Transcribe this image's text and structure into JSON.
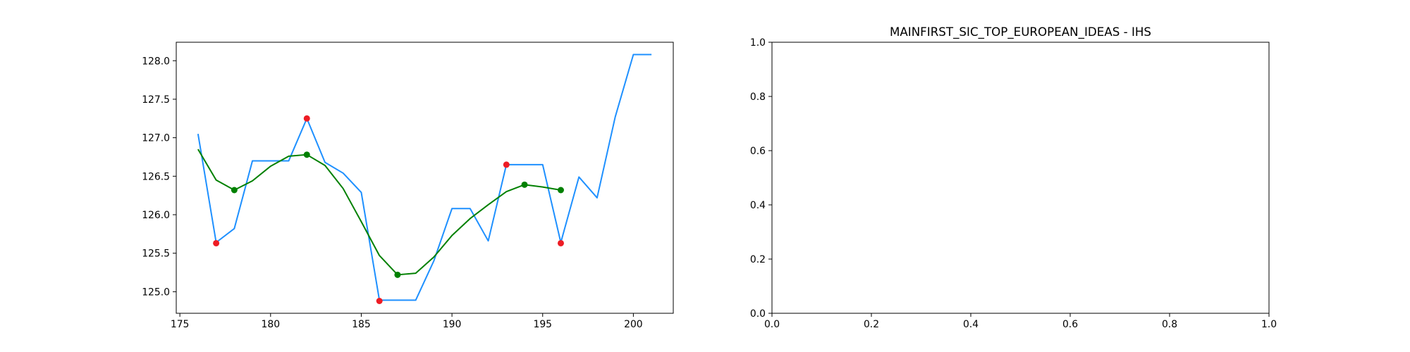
{
  "colors": {
    "price_line": "#1e90ff",
    "smooth_line": "#008000",
    "extrema_marker": "#ee1c24",
    "smooth_marker": "#008000",
    "axes": "#000000",
    "background": "#ffffff"
  },
  "chart_data": [
    {
      "type": "line",
      "title": "",
      "xlabel": "",
      "ylabel": "",
      "xlim": [
        174.8,
        202.2
      ],
      "ylim": [
        124.72,
        128.24
      ],
      "grid": false,
      "legend": "none",
      "x_ticks": [
        175,
        180,
        185,
        190,
        195,
        200
      ],
      "x_tick_labels": [
        "175",
        "180",
        "185",
        "190",
        "195",
        "200"
      ],
      "y_ticks": [
        125.0,
        125.5,
        126.0,
        126.5,
        127.0,
        127.5,
        128.0
      ],
      "y_tick_labels": [
        "125.0",
        "125.5",
        "126.0",
        "126.5",
        "127.0",
        "127.5",
        "128.0"
      ],
      "series": [
        {
          "style": "line",
          "color_key": "price_line",
          "x": [
            176,
            177,
            178,
            179,
            180,
            181,
            182,
            183,
            184,
            185,
            186,
            187,
            188,
            189,
            190,
            191,
            192,
            193,
            194,
            195,
            196,
            197,
            198,
            199,
            200,
            201
          ],
          "y": [
            127.05,
            125.64,
            125.82,
            126.7,
            126.7,
            126.7,
            127.25,
            126.68,
            126.54,
            126.29,
            124.89,
            124.89,
            124.89,
            125.4,
            126.08,
            126.08,
            125.66,
            126.65,
            126.65,
            126.65,
            125.64,
            126.49,
            126.22,
            127.27,
            128.08,
            128.08
          ]
        },
        {
          "style": "line",
          "color_key": "smooth_line",
          "x": [
            176,
            177,
            178,
            179,
            180,
            181,
            182,
            183,
            184,
            185,
            186,
            187,
            188,
            189,
            190,
            191,
            192,
            193,
            194,
            195,
            196
          ],
          "y": [
            126.85,
            126.45,
            126.32,
            126.44,
            126.63,
            126.76,
            126.78,
            126.64,
            126.34,
            125.91,
            125.47,
            125.22,
            125.24,
            125.45,
            125.73,
            125.95,
            126.13,
            126.3,
            126.39,
            126.36,
            126.32
          ]
        },
        {
          "style": "scatter",
          "color_key": "extrema_marker",
          "x": [
            177,
            182,
            186,
            193,
            196
          ],
          "y": [
            125.63,
            127.25,
            124.88,
            126.65,
            125.63
          ]
        },
        {
          "style": "scatter",
          "color_key": "smooth_marker",
          "x": [
            178,
            182,
            187,
            194,
            196
          ],
          "y": [
            126.32,
            126.78,
            125.22,
            126.39,
            126.32
          ]
        }
      ]
    },
    {
      "type": "line",
      "title": "MAINFIRST_SIC_TOP_EUROPEAN_IDEAS - IHS",
      "xlabel": "",
      "ylabel": "",
      "xlim": [
        0.0,
        1.0
      ],
      "ylim": [
        0.0,
        1.0
      ],
      "grid": false,
      "legend": "none",
      "x_ticks": [
        0.0,
        0.2,
        0.4,
        0.6,
        0.8,
        1.0
      ],
      "x_tick_labels": [
        "0.0",
        "0.2",
        "0.4",
        "0.6",
        "0.8",
        "1.0"
      ],
      "y_ticks": [
        0.0,
        0.2,
        0.4,
        0.6,
        0.8,
        1.0
      ],
      "y_tick_labels": [
        "0.0",
        "0.2",
        "0.4",
        "0.6",
        "0.8",
        "1.0"
      ],
      "series": []
    }
  ]
}
